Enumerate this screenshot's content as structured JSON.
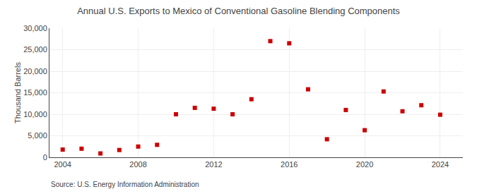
{
  "chart_data": {
    "type": "scatter",
    "title": "Annual U.S. Exports to Mexico of Conventional Gasoline Blending Components",
    "ylabel": "Thousand Barrels",
    "annotations": [
      "Source: U.S. Energy Information Administration"
    ],
    "x": [
      2004,
      2005,
      2006,
      2007,
      2008,
      2009,
      2010,
      2011,
      2012,
      2013,
      2014,
      2015,
      2016,
      2017,
      2018,
      2019,
      2020,
      2021,
      2022,
      2023,
      2024
    ],
    "values": [
      1800,
      2000,
      900,
      1700,
      2500,
      2900,
      10000,
      11500,
      11300,
      10000,
      13500,
      27000,
      26500,
      15800,
      4200,
      11000,
      6300,
      15300,
      10700,
      12100,
      9900
    ],
    "color": "#cc0000",
    "marker": "square",
    "xlim": [
      2003.3,
      2025.2
    ],
    "xticks": [
      2004,
      2008,
      2012,
      2016,
      2020,
      2024
    ],
    "ylim": [
      0,
      30000
    ],
    "yticks": [
      0,
      {
        "value": 5000,
        "label": "5,000"
      },
      {
        "value": 10000,
        "label": "10,000"
      },
      {
        "value": 15000,
        "label": "15,000"
      },
      {
        "value": 20000,
        "label": "20,000"
      },
      {
        "value": 25000,
        "label": "25,000"
      },
      {
        "value": 30000,
        "label": "30,000"
      }
    ],
    "grid": true
  }
}
